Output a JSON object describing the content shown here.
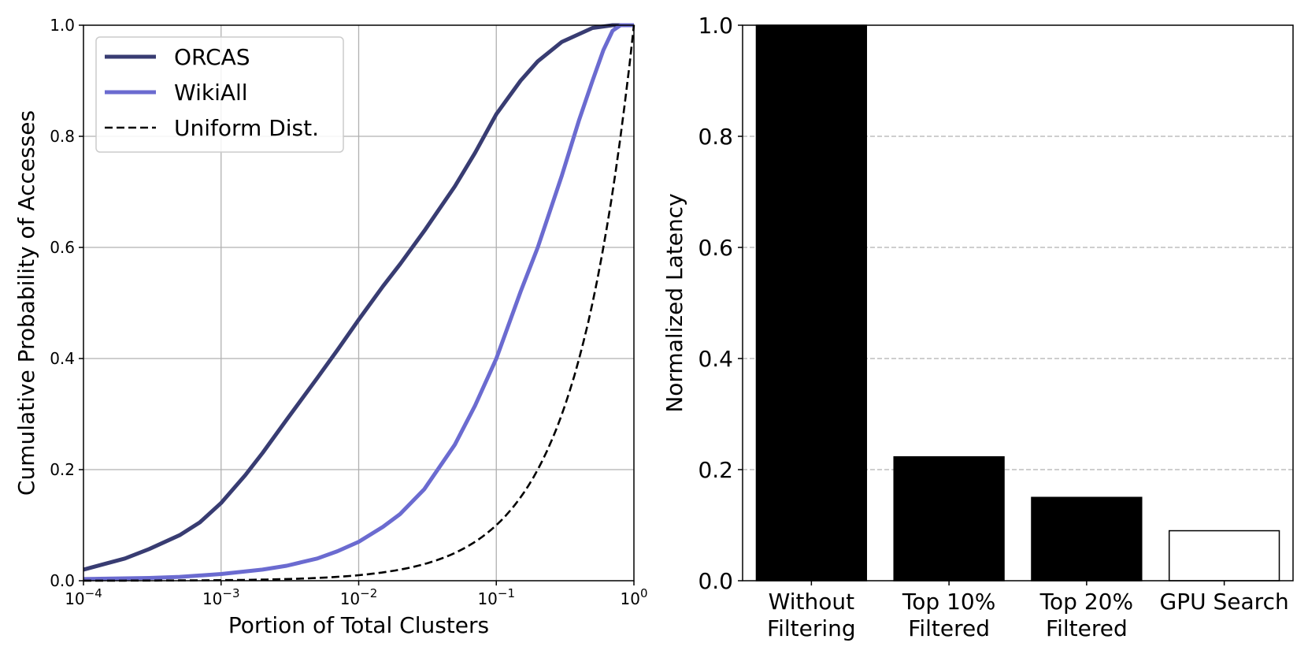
{
  "chart_data": [
    {
      "type": "line",
      "xlabel": "Portion of Total Clusters",
      "ylabel": "Cumulative Probability of Accesses",
      "xscale": "log",
      "xlim": [
        0.0001,
        1
      ],
      "ylim": [
        0,
        1
      ],
      "grid": true,
      "legend_position": "top-left",
      "xticks": [
        {
          "value": 0.0001,
          "base": "10",
          "exp": "−4"
        },
        {
          "value": 0.001,
          "base": "10",
          "exp": "−3"
        },
        {
          "value": 0.01,
          "base": "10",
          "exp": "−2"
        },
        {
          "value": 0.1,
          "base": "10",
          "exp": "−1"
        },
        {
          "value": 1,
          "base": "10",
          "exp": "0"
        }
      ],
      "yticks": [
        "0.0",
        "0.2",
        "0.4",
        "0.6",
        "0.8",
        "1.0"
      ],
      "series": [
        {
          "name": "ORCAS",
          "color": "#383c72",
          "style": "solid",
          "points": [
            [
              0.0001,
              0.02
            ],
            [
              0.0002,
              0.04
            ],
            [
              0.0003,
              0.057
            ],
            [
              0.0005,
              0.082
            ],
            [
              0.0007,
              0.105
            ],
            [
              0.001,
              0.14
            ],
            [
              0.0015,
              0.19
            ],
            [
              0.002,
              0.23
            ],
            [
              0.003,
              0.29
            ],
            [
              0.005,
              0.365
            ],
            [
              0.007,
              0.415
            ],
            [
              0.01,
              0.47
            ],
            [
              0.015,
              0.53
            ],
            [
              0.02,
              0.57
            ],
            [
              0.03,
              0.63
            ],
            [
              0.05,
              0.71
            ],
            [
              0.07,
              0.77
            ],
            [
              0.1,
              0.84
            ],
            [
              0.15,
              0.9
            ],
            [
              0.2,
              0.935
            ],
            [
              0.3,
              0.97
            ],
            [
              0.5,
              0.995
            ],
            [
              0.7,
              1.0
            ],
            [
              1,
              1.0
            ]
          ]
        },
        {
          "name": "WikiAll",
          "color": "#6b6bd0",
          "style": "solid",
          "points": [
            [
              0.0001,
              0.003
            ],
            [
              0.0003,
              0.005
            ],
            [
              0.0005,
              0.007
            ],
            [
              0.001,
              0.012
            ],
            [
              0.002,
              0.02
            ],
            [
              0.003,
              0.027
            ],
            [
              0.005,
              0.04
            ],
            [
              0.007,
              0.053
            ],
            [
              0.01,
              0.07
            ],
            [
              0.015,
              0.097
            ],
            [
              0.02,
              0.12
            ],
            [
              0.03,
              0.165
            ],
            [
              0.05,
              0.245
            ],
            [
              0.07,
              0.315
            ],
            [
              0.1,
              0.4
            ],
            [
              0.15,
              0.52
            ],
            [
              0.2,
              0.6
            ],
            [
              0.3,
              0.73
            ],
            [
              0.4,
              0.83
            ],
            [
              0.5,
              0.9
            ],
            [
              0.6,
              0.955
            ],
            [
              0.7,
              0.99
            ],
            [
              0.8,
              1.0
            ],
            [
              1,
              1.0
            ]
          ]
        },
        {
          "name": "Uniform Dist.",
          "color": "#000000",
          "style": "dashed",
          "points": "y = x"
        }
      ]
    },
    {
      "type": "bar",
      "ylabel": "Normalized Latency",
      "ylim": [
        0,
        1
      ],
      "grid": "horizontal dashed",
      "yticks": [
        "0.0",
        "0.2",
        "0.4",
        "0.6",
        "0.8",
        "1.0"
      ],
      "categories": [
        [
          "Without",
          "Filtering"
        ],
        [
          "Top 10%",
          "Filtered"
        ],
        [
          "Top 20%",
          "Filtered"
        ],
        [
          "GPU Search"
        ]
      ],
      "values": [
        1.0,
        0.223,
        0.15,
        0.09
      ],
      "bar_fill": [
        "#000000",
        "#000000",
        "#000000",
        "#ffffff"
      ]
    }
  ]
}
